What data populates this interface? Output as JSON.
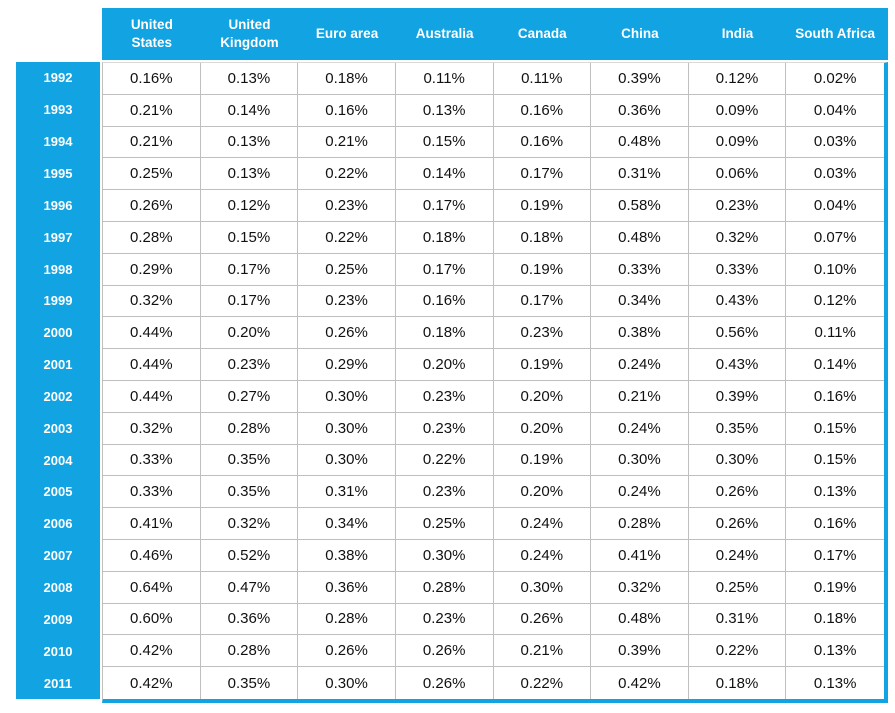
{
  "colors": {
    "accent_blue": "#12A3E2",
    "gridline_gray": "#BFBFBF",
    "header_text": "#FFFFFF",
    "cell_text": "#111111"
  },
  "chart_data": {
    "type": "table",
    "title": "",
    "columns": [
      "United States",
      "United Kingdom",
      "Euro area",
      "Australia",
      "Canada",
      "China",
      "India",
      "South Africa"
    ],
    "rows": [
      {
        "year": "1992",
        "values": [
          "0.16%",
          "0.13%",
          "0.18%",
          "0.11%",
          "0.11%",
          "0.39%",
          "0.12%",
          "0.02%"
        ]
      },
      {
        "year": "1993",
        "values": [
          "0.21%",
          "0.14%",
          "0.16%",
          "0.13%",
          "0.16%",
          "0.36%",
          "0.09%",
          "0.04%"
        ]
      },
      {
        "year": "1994",
        "values": [
          "0.21%",
          "0.13%",
          "0.21%",
          "0.15%",
          "0.16%",
          "0.48%",
          "0.09%",
          "0.03%"
        ]
      },
      {
        "year": "1995",
        "values": [
          "0.25%",
          "0.13%",
          "0.22%",
          "0.14%",
          "0.17%",
          "0.31%",
          "0.06%",
          "0.03%"
        ]
      },
      {
        "year": "1996",
        "values": [
          "0.26%",
          "0.12%",
          "0.23%",
          "0.17%",
          "0.19%",
          "0.58%",
          "0.23%",
          "0.04%"
        ]
      },
      {
        "year": "1997",
        "values": [
          "0.28%",
          "0.15%",
          "0.22%",
          "0.18%",
          "0.18%",
          "0.48%",
          "0.32%",
          "0.07%"
        ]
      },
      {
        "year": "1998",
        "values": [
          "0.29%",
          "0.17%",
          "0.25%",
          "0.17%",
          "0.19%",
          "0.33%",
          "0.33%",
          "0.10%"
        ]
      },
      {
        "year": "1999",
        "values": [
          "0.32%",
          "0.17%",
          "0.23%",
          "0.16%",
          "0.17%",
          "0.34%",
          "0.43%",
          "0.12%"
        ]
      },
      {
        "year": "2000",
        "values": [
          "0.44%",
          "0.20%",
          "0.26%",
          "0.18%",
          "0.23%",
          "0.38%",
          "0.56%",
          "0.11%"
        ]
      },
      {
        "year": "2001",
        "values": [
          "0.44%",
          "0.23%",
          "0.29%",
          "0.20%",
          "0.19%",
          "0.24%",
          "0.43%",
          "0.14%"
        ]
      },
      {
        "year": "2002",
        "values": [
          "0.44%",
          "0.27%",
          "0.30%",
          "0.23%",
          "0.20%",
          "0.21%",
          "0.39%",
          "0.16%"
        ]
      },
      {
        "year": "2003",
        "values": [
          "0.32%",
          "0.28%",
          "0.30%",
          "0.23%",
          "0.20%",
          "0.24%",
          "0.35%",
          "0.15%"
        ]
      },
      {
        "year": "2004",
        "values": [
          "0.33%",
          "0.35%",
          "0.30%",
          "0.22%",
          "0.19%",
          "0.30%",
          "0.30%",
          "0.15%"
        ]
      },
      {
        "year": "2005",
        "values": [
          "0.33%",
          "0.35%",
          "0.31%",
          "0.23%",
          "0.20%",
          "0.24%",
          "0.26%",
          "0.13%"
        ]
      },
      {
        "year": "2006",
        "values": [
          "0.41%",
          "0.32%",
          "0.34%",
          "0.25%",
          "0.24%",
          "0.28%",
          "0.26%",
          "0.16%"
        ]
      },
      {
        "year": "2007",
        "values": [
          "0.46%",
          "0.52%",
          "0.38%",
          "0.30%",
          "0.24%",
          "0.41%",
          "0.24%",
          "0.17%"
        ]
      },
      {
        "year": "2008",
        "values": [
          "0.64%",
          "0.47%",
          "0.36%",
          "0.28%",
          "0.30%",
          "0.32%",
          "0.25%",
          "0.19%"
        ]
      },
      {
        "year": "2009",
        "values": [
          "0.60%",
          "0.36%",
          "0.28%",
          "0.23%",
          "0.26%",
          "0.48%",
          "0.31%",
          "0.18%"
        ]
      },
      {
        "year": "2010",
        "values": [
          "0.42%",
          "0.28%",
          "0.26%",
          "0.26%",
          "0.21%",
          "0.39%",
          "0.22%",
          "0.13%"
        ]
      },
      {
        "year": "2011",
        "values": [
          "0.42%",
          "0.35%",
          "0.30%",
          "0.26%",
          "0.22%",
          "0.42%",
          "0.18%",
          "0.13%"
        ]
      }
    ]
  }
}
